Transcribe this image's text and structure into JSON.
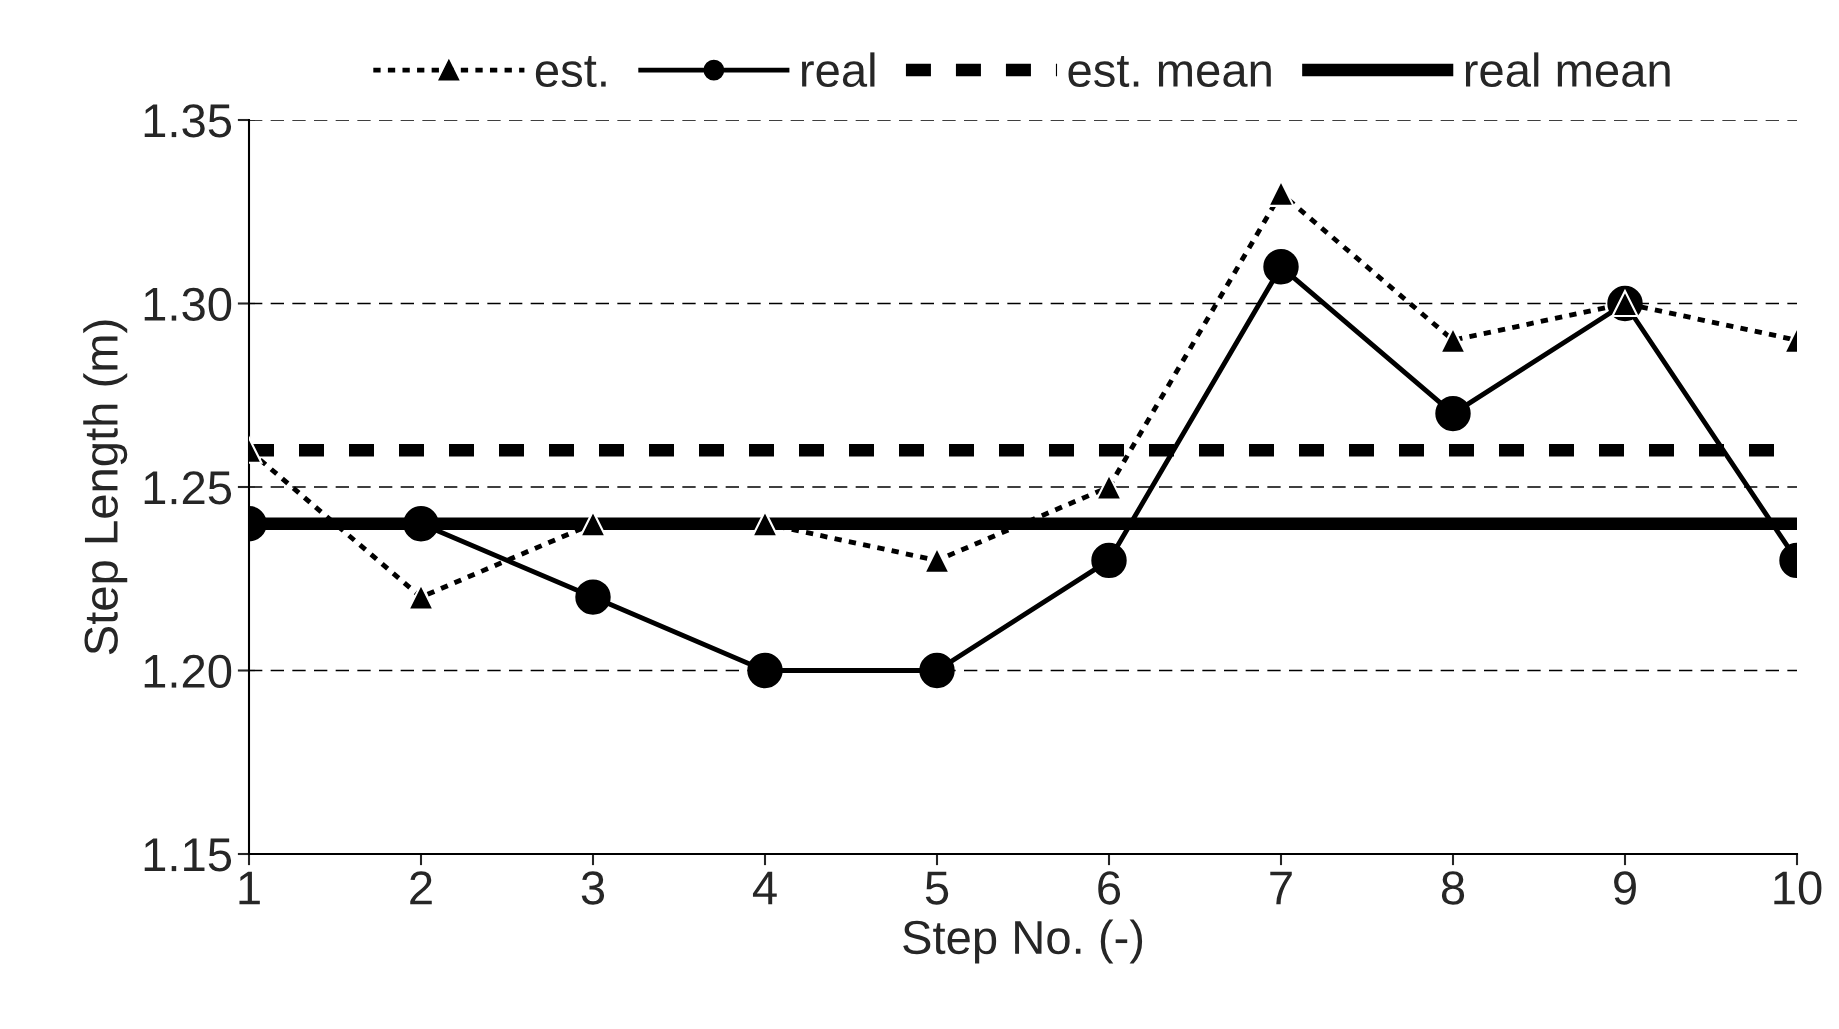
{
  "chart_data": {
    "type": "line",
    "xlabel": "Step No. (-)",
    "ylabel": "Step Length (m)",
    "x": [
      1,
      2,
      3,
      4,
      5,
      6,
      7,
      8,
      9,
      10
    ],
    "series": [
      {
        "name": "est.",
        "color": "#000000",
        "marker": "triangle",
        "line_style": "dotted",
        "values": [
          1.26,
          1.22,
          1.24,
          1.24,
          1.23,
          1.25,
          1.33,
          1.29,
          1.3,
          1.29
        ]
      },
      {
        "name": "real",
        "color": "#000000",
        "marker": "circle",
        "line_style": "solid",
        "values": [
          1.24,
          1.24,
          1.22,
          1.2,
          1.2,
          1.23,
          1.31,
          1.27,
          1.3,
          1.23
        ]
      }
    ],
    "ref_lines": [
      {
        "axis": "y",
        "value": 1.26,
        "label": "est. mean",
        "color": "#000000",
        "line_style": "dashed"
      },
      {
        "axis": "y",
        "value": 1.24,
        "label": "real mean",
        "color": "#000000",
        "line_style": "solid"
      }
    ],
    "xlim": [
      1,
      10
    ],
    "xticks": [
      1,
      2,
      3,
      4,
      5,
      6,
      7,
      8,
      9,
      10
    ],
    "ylim": [
      1.15,
      1.35
    ],
    "yticks": [
      {
        "value": 1.15,
        "label": "1.15"
      },
      {
        "value": 1.2,
        "label": "1.20"
      },
      {
        "value": 1.25,
        "label": "1.25"
      },
      {
        "value": 1.3,
        "label": "1.30"
      },
      {
        "value": 1.35,
        "label": "1.35"
      }
    ],
    "grid": "y",
    "legend": "top"
  }
}
